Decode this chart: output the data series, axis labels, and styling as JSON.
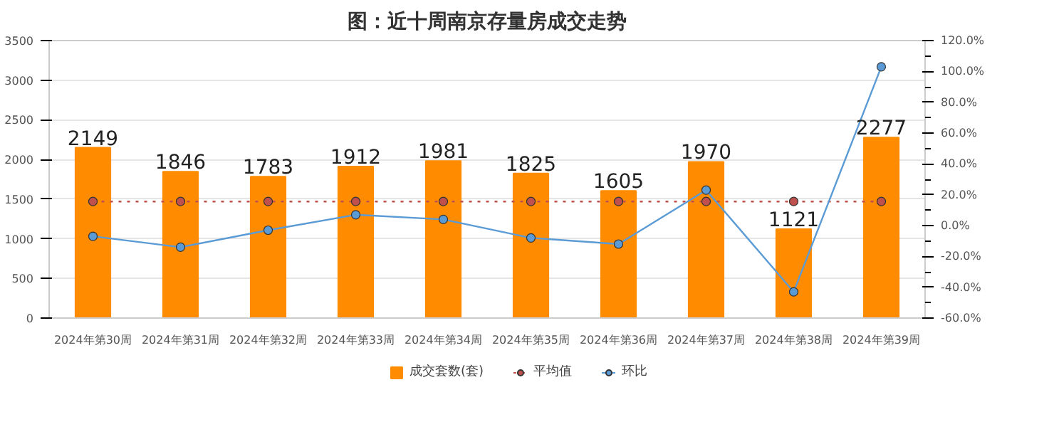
{
  "chart_data": {
    "type": "bar",
    "title": "图：近十周南京存量房成交走势",
    "categories": [
      "2024年第30周",
      "2024年第31周",
      "2024年第32周",
      "2024年第33周",
      "2024年第34周",
      "2024年第35周",
      "2024年第36周",
      "2024年第37周",
      "2024年第38周",
      "2024年第39周"
    ],
    "series": [
      {
        "name": "成交套数(套)",
        "color": "#ff8c00",
        "values": [
          2149,
          1846,
          1783,
          1912,
          1981,
          1825,
          1605,
          1970,
          1121,
          2277
        ],
        "value_labels": [
          "2149",
          "1846",
          "1783",
          "1912",
          "1981",
          "1825",
          "1605",
          "1970",
          "1121",
          "2277"
        ]
      },
      {
        "name": "平均值",
        "type": "line",
        "color": "#c0504d",
        "line_style": "dotted",
        "marker": "circle",
        "values": [
          1470,
          1470,
          1470,
          1470,
          1470,
          1470,
          1470,
          1470,
          1470,
          1470
        ]
      },
      {
        "name": "环比",
        "type": "line",
        "axis": "y2",
        "color": "#5b9bd5",
        "line_style": "solid",
        "marker": "circle",
        "values": [
          -7,
          -14,
          -3,
          7,
          4,
          -8,
          -12,
          23,
          -43,
          103
        ]
      }
    ],
    "ylim": [
      0,
      3500
    ],
    "yticks": [
      0,
      500,
      1000,
      1500,
      2000,
      2500,
      3000,
      3500
    ],
    "y2lim": [
      -60,
      120
    ],
    "y2ticks": [
      {
        "value": -60,
        "label": "-60.0%"
      },
      {
        "value": -40,
        "label": "-40.0%"
      },
      {
        "value": -20,
        "label": "-20.0%"
      },
      {
        "value": 0,
        "label": "0.0%"
      },
      {
        "value": 20,
        "label": "20.0%"
      },
      {
        "value": 40,
        "label": "40.0%"
      },
      {
        "value": 60,
        "label": "60.0%"
      },
      {
        "value": 80,
        "label": "80.0%"
      },
      {
        "value": 100,
        "label": "100.0%"
      },
      {
        "value": 120,
        "label": "120.0%"
      }
    ],
    "grid": "y",
    "legend": "bottom"
  }
}
